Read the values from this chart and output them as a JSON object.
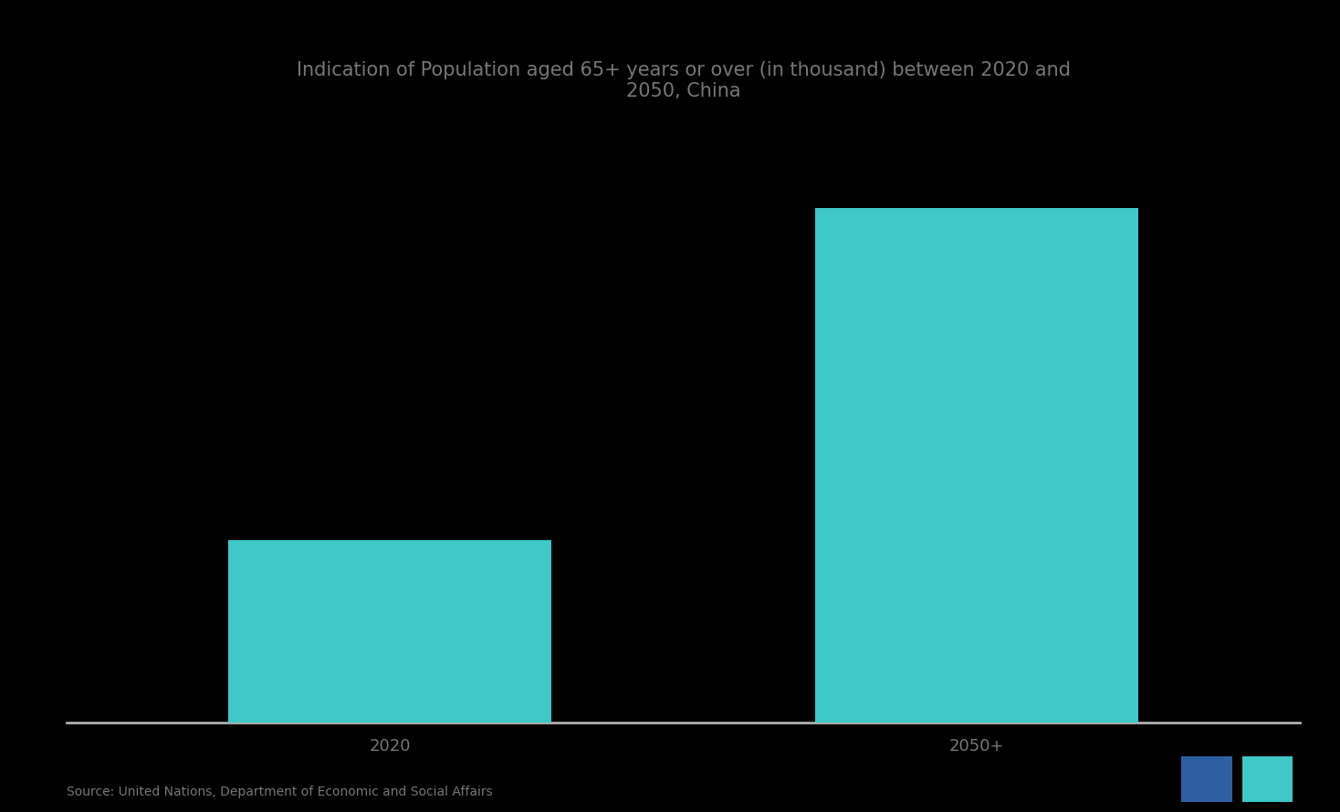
{
  "title_line1": "Indication of Population aged 65+ years or over (in thousand) between 2020 and",
  "title_line2": "2050, China",
  "categories": [
    "2020",
    "2050+"
  ],
  "values": [
    170000,
    480000
  ],
  "bar_color": "#3ec8c8",
  "background_color": "#000000",
  "plot_bg_color": "#000000",
  "axis_line_color": "#b0b0b0",
  "text_color": "#777777",
  "title_color": "#777777",
  "source_text": "Source: United Nations, Department of Economic and Social Affairs",
  "bar_width": 0.55,
  "ylim": [
    0,
    560000
  ],
  "xlabel_fontsize": 13,
  "title_fontsize": 15,
  "source_fontsize": 10
}
